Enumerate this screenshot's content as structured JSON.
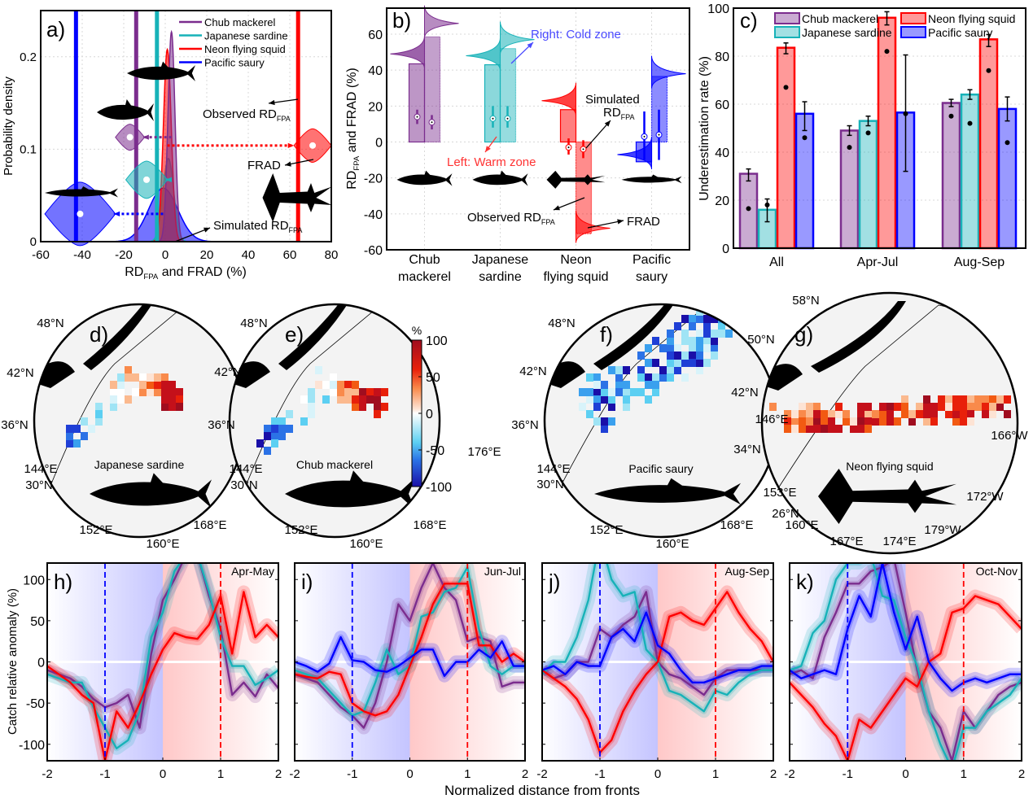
{
  "colors": {
    "chub_mackerel": "#7B2D8E",
    "japanese_sardine": "#17B2B8",
    "neon_flying_squid": "#FF0000",
    "pacific_saury": "#0000FF",
    "cold_zone_text": "#4A4AFF",
    "warm_zone_text": "#FF3333"
  },
  "chart_data": [
    {
      "panel": "a)",
      "type": "area",
      "ylabel": "Probability density",
      "xlabel": {
        "main": "RD",
        "sub": "FPA",
        "rest": " and FRAD (%)"
      },
      "xlim": [
        -60,
        80
      ],
      "ylim": [
        0,
        0.25
      ],
      "xticks": [
        -60,
        -40,
        -20,
        0,
        20,
        40,
        60,
        80
      ],
      "yticks": [
        0,
        0.1,
        0.2
      ],
      "grid": true,
      "legend_position": "top-right",
      "series": [
        {
          "name": "Pacific saury",
          "key": "pacific_saury",
          "observed_rd": -43,
          "sim_mean": -1,
          "sim_sd": 7,
          "sim_peak": 0.058,
          "frad_center": -41,
          "frad_level": 0.03,
          "frad_spread": 17
        },
        {
          "name": "Japanese sardine",
          "key": "japanese_sardine",
          "observed_rd": -4,
          "sim_mean": 1.5,
          "sim_sd": 2.6,
          "sim_peak": 0.09,
          "frad_center": -9,
          "frad_level": 0.067,
          "frad_spread": 10
        },
        {
          "name": "Neon flying squid",
          "key": "neon_flying_squid",
          "observed_rd": 64,
          "sim_mean": 1,
          "sim_sd": 1.9,
          "sim_peak": 0.208,
          "frad_center": 71,
          "frad_level": 0.104,
          "frad_spread": 9
        },
        {
          "name": "Chub mackerel",
          "key": "chub_mackerel",
          "observed_rd": -14,
          "sim_mean": 3,
          "sim_sd": 1.7,
          "sim_peak": 0.227,
          "frad_center": -17,
          "frad_level": 0.113,
          "frad_spread": 7
        }
      ],
      "legend": [
        "Chub mackerel",
        "Japanese sardine",
        "Neon flying squid",
        "Pacific saury"
      ],
      "annotations": {
        "observed": "Observed RD",
        "observed_sub": "FPA",
        "frad": "FRAD",
        "simulated": "Simulated RD",
        "simulated_sub": "FPA"
      }
    },
    {
      "panel": "b)",
      "type": "bar",
      "ylabel": {
        "main": "RD",
        "sub": "FPA",
        "rest": " and FRAD (%)"
      },
      "ylim": [
        -60,
        74.5
      ],
      "yticks": [
        -60,
        -40,
        -20,
        0,
        20,
        40,
        60
      ],
      "grid": true,
      "categories": [
        [
          "Chub",
          "mackerel"
        ],
        [
          "Japanese",
          "sardine"
        ],
        [
          "Neon",
          "flying squid"
        ],
        [
          "Pacific",
          "saury"
        ]
      ],
      "keys": [
        "chub_mackerel",
        "japanese_sardine",
        "neon_flying_squid",
        "pacific_saury"
      ],
      "series": [
        {
          "name": "Warm zone (left)",
          "observed_rd": [
            43.5,
            43,
            18,
            -11
          ],
          "simulated": [
            14,
            13,
            -3,
            3
          ],
          "sim_low": [
            10,
            8,
            -7,
            -10
          ],
          "sim_high": [
            18,
            20,
            2,
            17
          ],
          "frad": [
            49,
            48,
            23,
            -7
          ]
        },
        {
          "name": "Cold zone (right)",
          "observed_rd": [
            58.5,
            52,
            -51,
            36.5
          ],
          "simulated": [
            11,
            13,
            -4,
            4
          ],
          "sim_low": [
            7,
            8,
            -9,
            -10
          ],
          "sim_high": [
            15,
            20,
            1,
            18
          ],
          "frad": [
            66,
            57,
            -48,
            38
          ]
        }
      ],
      "annotations": {
        "cold": "Right: Cold zone",
        "warm": "Left: Warm zone",
        "simulated": "Simulated",
        "simulated_rd": "RD",
        "simulated_sub": "FPA",
        "observed": "Observed RD",
        "observed_sub": "FPA",
        "frad": "FRAD"
      }
    },
    {
      "panel": "c)",
      "type": "bar",
      "ylabel": "Underestimation rate (%)",
      "ylim": [
        0,
        100
      ],
      "yticks": [
        0,
        20,
        40,
        60,
        80,
        100
      ],
      "grid": true,
      "legend_position": "top",
      "categories": [
        "All",
        "Apr-Jul",
        "Aug-Sep"
      ],
      "series": [
        {
          "name": "Chub mackerel",
          "key": "chub_mackerel",
          "values": [
            31,
            49,
            60.5
          ],
          "err_low": [
            28,
            47,
            59
          ],
          "err_high": [
            33,
            51,
            62
          ],
          "points": [
            16.5,
            42,
            55
          ]
        },
        {
          "name": "Japanese sardine",
          "key": "japanese_sardine",
          "values": [
            16,
            53,
            64
          ],
          "err_low": [
            11,
            51,
            62
          ],
          "err_high": [
            20.5,
            55,
            66
          ],
          "points": [
            18,
            48,
            52
          ]
        },
        {
          "name": "Neon flying squid",
          "key": "neon_flying_squid",
          "values": [
            83.5,
            96,
            87
          ],
          "err_low": [
            81,
            93,
            84
          ],
          "err_high": [
            85.5,
            98.5,
            89
          ],
          "points": [
            67,
            82,
            74
          ]
        },
        {
          "name": "Pacific saury",
          "key": "pacific_saury",
          "values": [
            56,
            56.5,
            58
          ],
          "err_low": [
            49,
            32,
            53
          ],
          "err_high": [
            61,
            80.5,
            63
          ],
          "points": [
            46,
            56,
            44
          ]
        }
      ]
    },
    {
      "type": "heatmap",
      "colorbar": {
        "unit": "%",
        "ticks": [
          100,
          50,
          0,
          -50,
          -100
        ],
        "range": [
          -100,
          100
        ]
      },
      "maps": [
        {
          "panel": "d)",
          "species": "Japanese sardine",
          "labels": [
            "48°N",
            "42°N",
            "36°N",
            "144°E",
            "30°N",
            "152°E",
            "160°E",
            "168°E"
          ]
        },
        {
          "panel": "e)",
          "species": "Chub mackerel",
          "labels": [
            "48°N",
            "42°N",
            "36°N",
            "144°E",
            "30°N",
            "152°E",
            "160°E",
            "168°E",
            "176°E"
          ]
        },
        {
          "panel": "f)",
          "species": "Pacific saury",
          "labels": [
            "48°N",
            "42°N",
            "36°N",
            "144°E",
            "30°N",
            "152°E",
            "160°E",
            "168°E"
          ]
        },
        {
          "panel": "g)",
          "species": "Neon flying squid",
          "labels": [
            "58°N",
            "50°N",
            "42°N",
            "34°N",
            "146°E",
            "153°E",
            "26°N",
            "160°E",
            "167°E",
            "174°E",
            "179°W",
            "172°W",
            "166°W"
          ]
        }
      ]
    },
    {
      "panel": "h)",
      "season": "Apr-May",
      "type": "line",
      "x": [
        -2,
        -1.8,
        -1.6,
        -1.4,
        -1.2,
        -1,
        -0.8,
        -0.6,
        -0.4,
        -0.2,
        0,
        0.2,
        0.4,
        0.6,
        0.8,
        1,
        1.2,
        1.4,
        1.6,
        1.8,
        2
      ],
      "series": [
        {
          "name": "Chub mackerel",
          "key": "chub_mackerel",
          "values": [
            -10,
            -15,
            -20,
            -30,
            -45,
            -55,
            -50,
            -40,
            -80,
            10,
            75,
            100,
            130,
            130,
            80,
            40,
            -40,
            -25,
            -42,
            -15,
            -32
          ]
        },
        {
          "name": "Japanese sardine",
          "key": "japanese_sardine",
          "values": [
            -15,
            -20,
            -25,
            -25,
            -55,
            -80,
            -105,
            -95,
            -60,
            30,
            60,
            110,
            130,
            130,
            85,
            30,
            -5,
            -5,
            -28,
            -20,
            -10
          ]
        },
        {
          "name": "Neon flying squid",
          "key": "neon_flying_squid",
          "values": [
            -5,
            -15,
            -25,
            -40,
            -50,
            -120,
            -60,
            -80,
            -50,
            -15,
            15,
            35,
            30,
            28,
            45,
            80,
            10,
            85,
            30,
            45,
            30
          ]
        }
      ]
    },
    {
      "panel": "i)",
      "season": "Jun-Jul",
      "type": "line",
      "x": [
        -2,
        -1.8,
        -1.6,
        -1.4,
        -1.2,
        -1,
        -0.8,
        -0.6,
        -0.4,
        -0.2,
        0,
        0.2,
        0.4,
        0.6,
        0.8,
        1,
        1.2,
        1.4,
        1.6,
        1.8,
        2
      ],
      "series": [
        {
          "name": "Chub mackerel",
          "key": "chub_mackerel",
          "values": [
            -15,
            -20,
            -25,
            -40,
            -55,
            -65,
            -80,
            -50,
            0,
            70,
            50,
            90,
            120,
            90,
            75,
            25,
            30,
            25,
            -30,
            -25,
            -25
          ]
        },
        {
          "name": "Japanese sardine",
          "key": "japanese_sardine",
          "values": [
            -10,
            -15,
            -20,
            -35,
            -50,
            -65,
            -60,
            -25,
            15,
            -15,
            -5,
            55,
            60,
            85,
            90,
            115,
            40,
            -5,
            -15,
            -5,
            -5
          ]
        },
        {
          "name": "Neon flying squid",
          "key": "neon_flying_squid",
          "values": [
            -15,
            -18,
            -20,
            -12,
            -15,
            -50,
            -60,
            -65,
            -60,
            -40,
            -5,
            30,
            70,
            95,
            95,
            95,
            20,
            20,
            0,
            10,
            0
          ]
        },
        {
          "name": "Pacific saury",
          "key": "pacific_saury",
          "values": [
            0,
            -5,
            -12,
            -2,
            30,
            2,
            0,
            -10,
            -12,
            -5,
            5,
            15,
            15,
            -17,
            0,
            0,
            15,
            5,
            25,
            -5,
            -5
          ]
        }
      ]
    },
    {
      "panel": "j)",
      "season": "Aug-Sep",
      "type": "line",
      "x": [
        -2,
        -1.8,
        -1.6,
        -1.4,
        -1.2,
        -1,
        -0.8,
        -0.6,
        -0.4,
        -0.2,
        0,
        0.2,
        0.4,
        0.6,
        0.8,
        1,
        1.2,
        1.4,
        1.6,
        1.8,
        2
      ],
      "series": [
        {
          "name": "Chub mackerel",
          "key": "chub_mackerel",
          "values": [
            -10,
            -20,
            -15,
            0,
            0,
            40,
            30,
            45,
            55,
            85,
            0,
            -15,
            -20,
            -30,
            -40,
            -20,
            -10,
            -10,
            -10,
            -10,
            -10
          ]
        },
        {
          "name": "Japanese sardine",
          "key": "japanese_sardine",
          "values": [
            -15,
            0,
            0,
            30,
            75,
            150,
            100,
            80,
            85,
            15,
            0,
            -35,
            -40,
            -50,
            -60,
            -35,
            -40,
            -25,
            -15,
            -10,
            -10
          ]
        },
        {
          "name": "Neon flying squid",
          "key": "neon_flying_squid",
          "values": [
            -10,
            -20,
            -30,
            -45,
            -70,
            -110,
            -95,
            -60,
            -35,
            -15,
            0,
            55,
            60,
            50,
            45,
            65,
            85,
            60,
            40,
            25,
            0
          ]
        },
        {
          "name": "Pacific saury",
          "key": "pacific_saury",
          "values": [
            -10,
            -5,
            -15,
            0,
            -5,
            -5,
            30,
            40,
            25,
            60,
            20,
            10,
            -10,
            -25,
            -25,
            -20,
            -15,
            -10,
            -10,
            -5,
            -5
          ]
        }
      ]
    },
    {
      "panel": "k)",
      "season": "Oct-Nov",
      "type": "line",
      "x": [
        -2,
        -1.8,
        -1.6,
        -1.4,
        -1.2,
        -1,
        -0.8,
        -0.6,
        -0.4,
        -0.2,
        0,
        0.2,
        0.4,
        0.6,
        0.8,
        1,
        1.2,
        1.4,
        1.6,
        1.8,
        2
      ],
      "series": [
        {
          "name": "Chub mackerel",
          "key": "chub_mackerel",
          "values": [
            -15,
            -10,
            -20,
            30,
            60,
            95,
            95,
            110,
            115,
            125,
            60,
            -10,
            -60,
            -80,
            -120,
            -60,
            -80,
            -60,
            -40,
            -30,
            -25
          ]
        },
        {
          "name": "Japanese sardine",
          "key": "japanese_sardine",
          "values": [
            -10,
            -5,
            35,
            50,
            100,
            120,
            120,
            130,
            80,
            75,
            30,
            -5,
            -60,
            -100,
            -130,
            -80,
            -80,
            -60,
            -50,
            -40,
            -20
          ]
        },
        {
          "name": "Neon flying squid",
          "key": "neon_flying_squid",
          "values": [
            -25,
            -40,
            -55,
            -75,
            -90,
            -120,
            -70,
            -80,
            -60,
            -40,
            -20,
            -30,
            0,
            10,
            60,
            65,
            80,
            75,
            70,
            55,
            40
          ]
        },
        {
          "name": "Pacific saury",
          "key": "pacific_saury",
          "values": [
            -10,
            -20,
            -15,
            -10,
            -15,
            40,
            80,
            55,
            120,
            60,
            15,
            55,
            0,
            -20,
            -35,
            -25,
            -20,
            -25,
            -20,
            -15,
            -15
          ]
        }
      ]
    }
  ],
  "bottom_axes": {
    "xticks": [
      -2,
      -1,
      0,
      1,
      2
    ],
    "yticks": [
      -100,
      -50,
      0,
      50,
      100
    ],
    "ylim": [
      -120,
      120
    ],
    "xlim": [
      -2,
      2
    ],
    "fronts": [
      -1,
      1
    ],
    "xlabel": "Normalized distance from fronts",
    "ylabel": "Catch relative anomaly (%)"
  }
}
